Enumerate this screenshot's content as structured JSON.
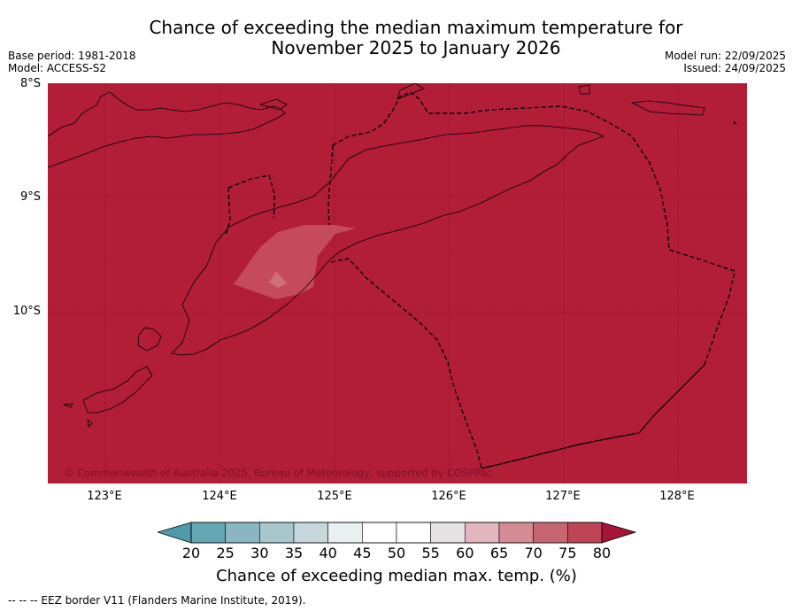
{
  "title": {
    "line1": "Chance of exceeding the median maximum temperature for",
    "line2": "November 2025 to January 2026"
  },
  "meta_left": {
    "base_period": "Base period: 1981-2018",
    "model": "Model: ACCESS-S2"
  },
  "meta_right": {
    "model_run": "Model run: 22/09/2025",
    "issued": "Issued: 24/09/2025"
  },
  "map": {
    "lat_labels": [
      "8°S",
      "9°S",
      "10°S"
    ],
    "lon_labels": [
      "123°E",
      "124°E",
      "125°E",
      "126°E",
      "127°E",
      "128°E"
    ],
    "background_color": "#b21d38",
    "patch_color_outer": "#c44a5c",
    "patch_color_inner": "#cf6f7c",
    "copyright": "© Commonwealth of Australia 2025, Bureau of Meteorology, supported by COSPPac"
  },
  "colorbar": {
    "ticks": [
      "20",
      "25",
      "30",
      "35",
      "40",
      "45",
      "50",
      "55",
      "60",
      "65",
      "70",
      "75",
      "80"
    ],
    "colors": [
      "#65a7b5",
      "#8ab6c3",
      "#a7c7cd",
      "#c7d8dc",
      "#e9f0f2",
      "#ffffff",
      "#ffffff",
      "#e6e3e4",
      "#e1b6be",
      "#d38b94",
      "#c66670",
      "#bd4555"
    ],
    "under_color": "#4f9aab",
    "over_color": "#a61438",
    "label": "Chance of exceeding median max. temp. (%)"
  },
  "footer": "--  --  -- EEZ border V11 (Flanders Marine Institute, 2019)."
}
